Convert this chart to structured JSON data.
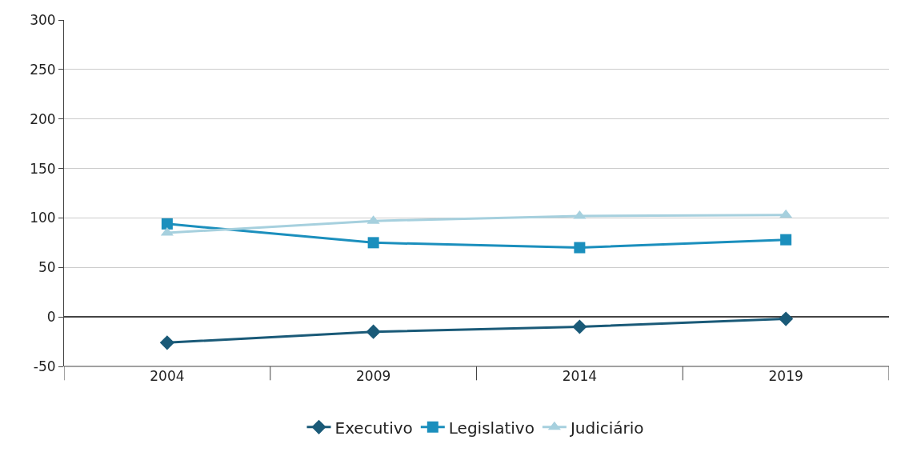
{
  "chart_data": {
    "type": "line",
    "categories": [
      "2004",
      "2009",
      "2014",
      "2019"
    ],
    "series": [
      {
        "name": "Executivo",
        "color": "#1a5a78",
        "marker": "diamond",
        "values": [
          -26,
          -15,
          -10,
          -2
        ]
      },
      {
        "name": "Legislativo",
        "color": "#1b8fbd",
        "marker": "square",
        "values": [
          94,
          75,
          70,
          78
        ]
      },
      {
        "name": "Judiciário",
        "color": "#a6d0de",
        "marker": "triangle",
        "values": [
          85,
          97,
          102,
          103
        ]
      }
    ],
    "ylim": [
      -50,
      300
    ],
    "yticks": [
      -50,
      0,
      50,
      100,
      150,
      200,
      250,
      300
    ],
    "grid": "y",
    "legend": "bottom",
    "line_style": "solid"
  }
}
